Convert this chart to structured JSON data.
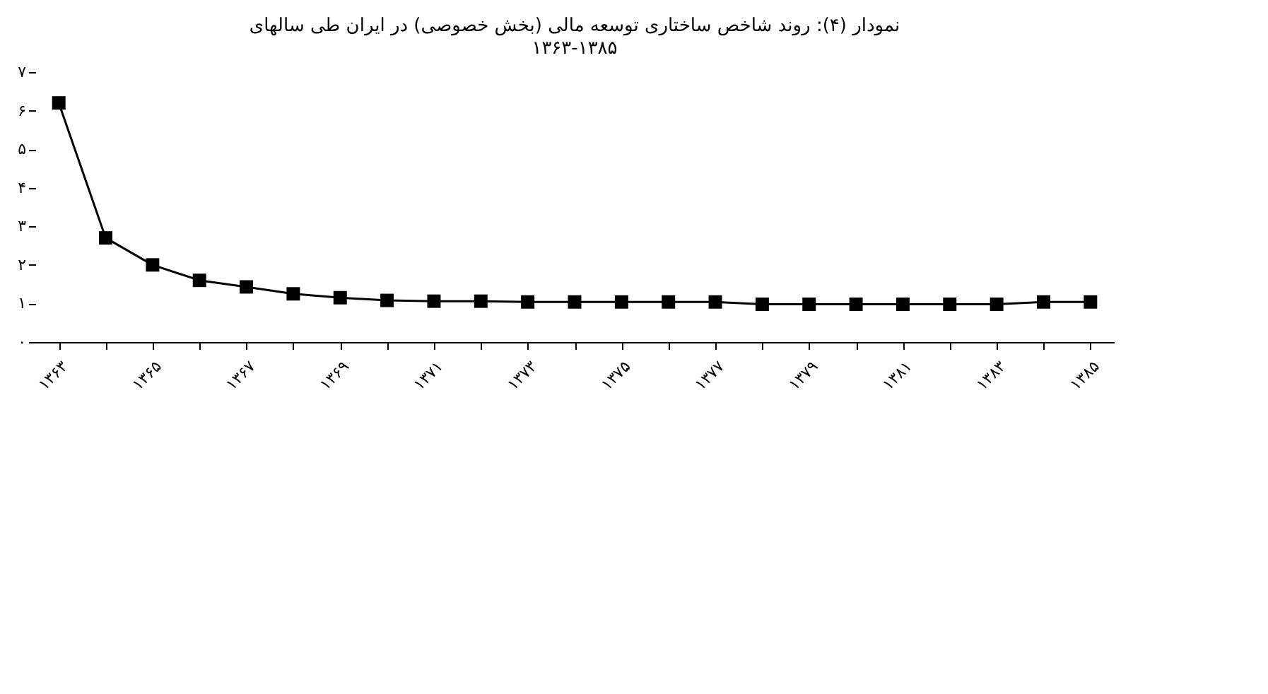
{
  "chart_data": {
    "type": "line",
    "title": "نمودار (۴): روند شاخص ساختاری توسعه مالی (بخش خصوصی) در ایران طی سالهای",
    "subtitle": "۱۳۶۳-۱۳۸۵",
    "categories": [
      "۱۳۶۳",
      null,
      "۱۳۶۵",
      null,
      "۱۳۶۷",
      null,
      "۱۳۶۹",
      null,
      "۱۳۷۱",
      null,
      "۱۳۷۳",
      null,
      "۱۳۷۵",
      null,
      "۱۳۷۷",
      null,
      "۱۳۷۹",
      null,
      "۱۳۸۱",
      null,
      "۱۳۸۳",
      null,
      "۱۳۸۵"
    ],
    "series": [
      {
        "color": "#000000",
        "values": [
          6.2,
          2.7,
          2.0,
          1.6,
          1.43,
          1.25,
          1.15,
          1.08,
          1.06,
          1.06,
          1.04,
          1.04,
          1.04,
          1.04,
          1.04,
          0.98,
          0.98,
          0.98,
          0.98,
          0.98,
          0.98,
          1.04,
          1.04
        ]
      }
    ],
    "ylim": [
      0,
      7
    ],
    "yticks": [
      {
        "value": 0,
        "label": "۰"
      },
      {
        "value": 1,
        "label": "۱"
      },
      {
        "value": 2,
        "label": "۲"
      },
      {
        "value": 3,
        "label": "۳"
      },
      {
        "value": 4,
        "label": "۴"
      },
      {
        "value": 5,
        "label": "۵"
      },
      {
        "value": 6,
        "label": "۶"
      },
      {
        "value": 7,
        "label": "۷"
      }
    ],
    "marker": "square",
    "line_style": "solid",
    "grid": false
  }
}
